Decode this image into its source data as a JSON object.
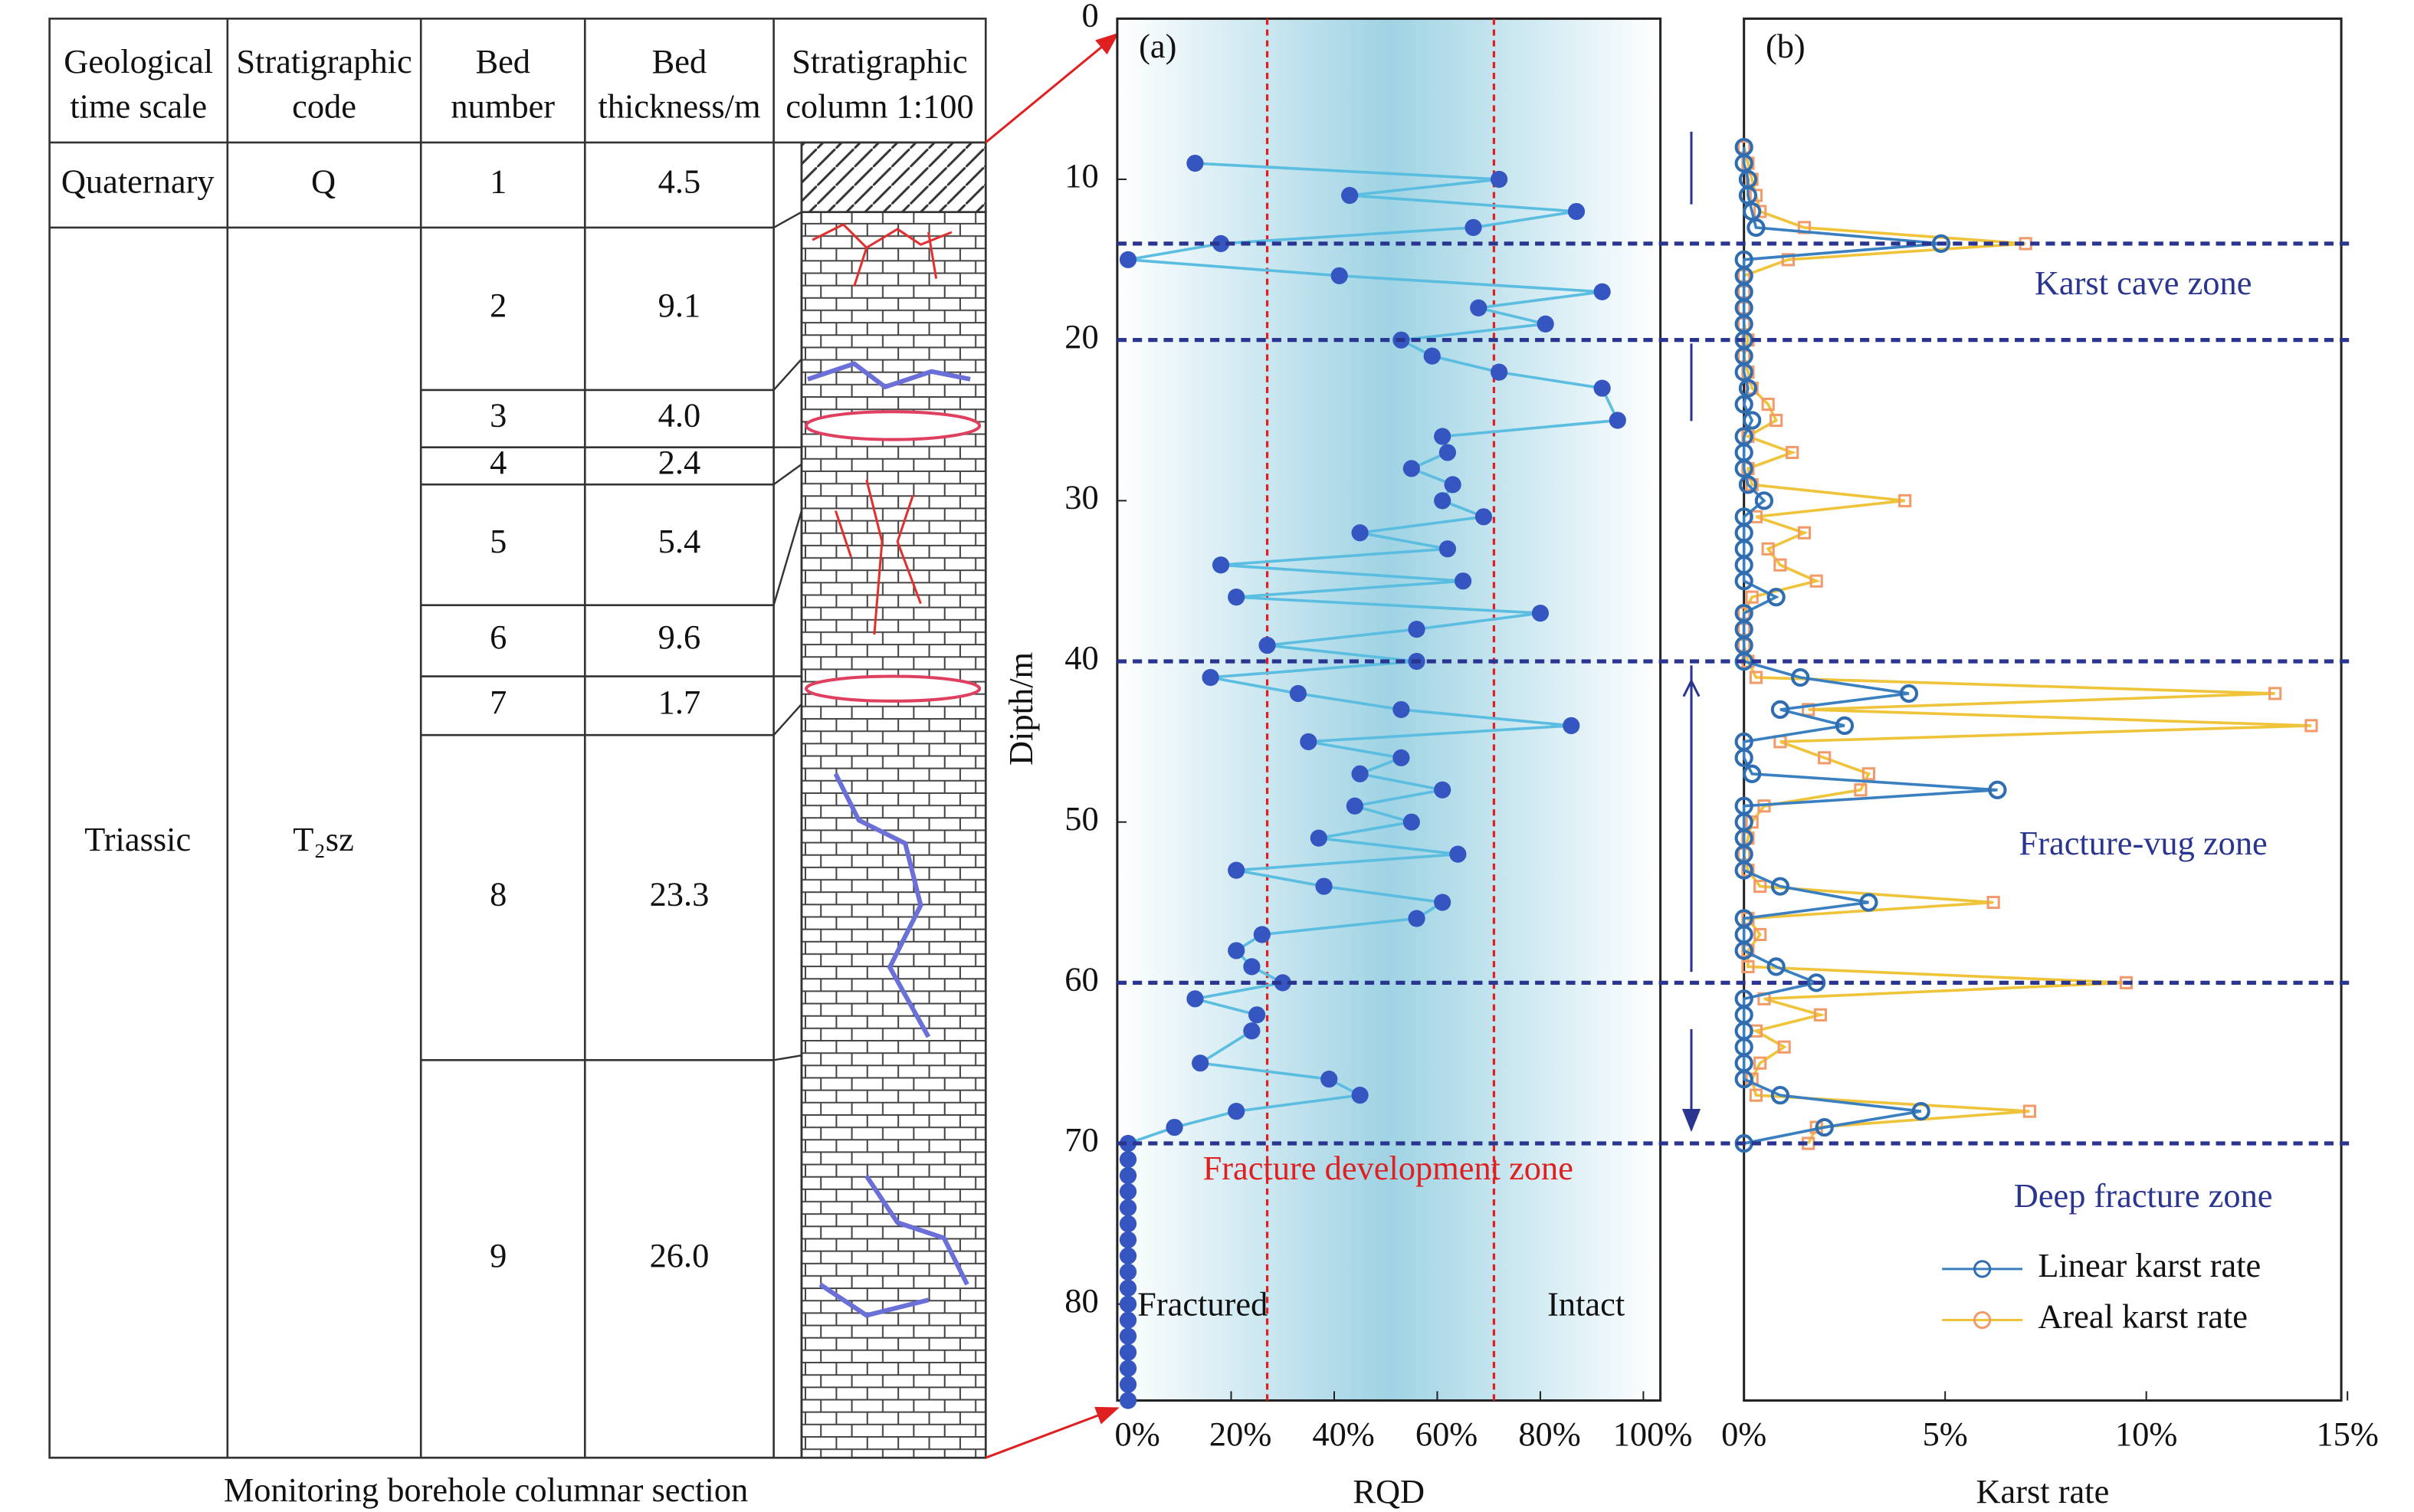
{
  "table": {
    "headers": [
      [
        "Geological",
        "time scale"
      ],
      [
        "Stratigraphic",
        "code"
      ],
      [
        "Bed",
        "number"
      ],
      [
        "Bed",
        "thickness/m"
      ],
      [
        "Stratigraphic",
        "column 1:100"
      ]
    ],
    "periods": [
      {
        "name": "Quaternary",
        "code": "Q",
        "beds": [
          {
            "number": 1,
            "thickness": "4.5"
          }
        ]
      },
      {
        "name": "Triassic",
        "code": "T₂sz",
        "beds": [
          {
            "number": 2,
            "thickness": "9.1"
          },
          {
            "number": 3,
            "thickness": "4.0"
          },
          {
            "number": 4,
            "thickness": "2.4"
          },
          {
            "number": 5,
            "thickness": "5.4"
          },
          {
            "number": 6,
            "thickness": "9.6"
          },
          {
            "number": 7,
            "thickness": "1.7"
          },
          {
            "number": 8,
            "thickness": "23.3"
          },
          {
            "number": 9,
            "thickness": "26.0"
          }
        ]
      }
    ],
    "caption": "Monitoring borehole columnar section"
  },
  "chart_data": [
    {
      "type": "scatter-line",
      "panel_label": "(a)",
      "x_label": "RQD",
      "y_label": "Dipth/m",
      "color": "#5bbde0",
      "marker_color": "#3556c0",
      "xlim": [
        0,
        100
      ],
      "xticks": [
        {
          "value": 0,
          "label": "0%"
        },
        {
          "value": 20,
          "label": "20%"
        },
        {
          "value": 40,
          "label": "40%"
        },
        {
          "value": 60,
          "label": "60%"
        },
        {
          "value": 80,
          "label": "80%"
        },
        {
          "value": 100,
          "label": "100%"
        }
      ],
      "ylim": [
        0,
        86
      ],
      "yticks": [
        0,
        10,
        20,
        30,
        40,
        50,
        60,
        70,
        80
      ],
      "thresholds": [
        27,
        71
      ],
      "annotations": [
        "Fracture development zone",
        "Fractured",
        "Intact"
      ],
      "y": [
        9,
        10,
        11,
        12,
        13,
        14,
        15,
        16,
        17,
        18,
        19,
        20,
        21,
        22,
        23,
        25,
        26,
        27,
        28,
        29,
        30,
        31,
        32,
        33,
        34,
        35,
        36,
        37,
        38,
        39,
        40,
        41,
        42,
        43,
        44,
        45,
        46,
        47,
        48,
        49,
        50,
        51,
        52,
        53,
        54,
        55,
        56,
        57,
        58,
        59,
        60,
        61,
        62,
        63,
        65,
        66,
        67,
        68,
        69,
        70,
        71,
        72,
        73,
        74,
        75,
        76,
        77,
        78,
        79,
        80,
        81,
        82,
        83,
        84,
        85,
        86
      ],
      "x": [
        13,
        72,
        43,
        87,
        67,
        18,
        0,
        41,
        92,
        68,
        81,
        53,
        59,
        72,
        92,
        95,
        61,
        62,
        55,
        63,
        61,
        69,
        45,
        62,
        18,
        65,
        21,
        80,
        56,
        27,
        56,
        16,
        33,
        53,
        86,
        35,
        53,
        45,
        61,
        44,
        55,
        37,
        64,
        21,
        38,
        61,
        56,
        26,
        21,
        24,
        30,
        13,
        25,
        24,
        14,
        39,
        45,
        21,
        9,
        0,
        0,
        0,
        0,
        0,
        0,
        0,
        0,
        0,
        0,
        0,
        0,
        0,
        0,
        0,
        0,
        0
      ]
    },
    {
      "type": "scatter-line",
      "panel_label": "(b)",
      "x_label": "Karst rate",
      "xlim": [
        0,
        15
      ],
      "xticks": [
        {
          "value": 0,
          "label": "0%"
        },
        {
          "value": 5,
          "label": "5%"
        },
        {
          "value": 10,
          "label": "10%"
        },
        {
          "value": 15,
          "label": "15%"
        }
      ],
      "ylim": [
        0,
        86
      ],
      "zone_boundaries": [
        14,
        20,
        40,
        60,
        70
      ],
      "zones": [
        "Karst cave zone",
        "Fracture-vug zone",
        "Deep fracture zone"
      ],
      "legend": "lower right",
      "y": [
        8,
        9,
        10,
        11,
        12,
        13,
        14,
        15,
        16,
        17,
        18,
        19,
        20,
        21,
        22,
        23,
        24,
        25,
        26,
        27,
        28,
        29,
        30,
        31,
        32,
        33,
        34,
        35,
        36,
        37,
        38,
        39,
        40,
        41,
        42,
        43,
        44,
        45,
        46,
        47,
        48,
        49,
        50,
        51,
        52,
        53,
        54,
        55,
        56,
        57,
        58,
        59,
        60,
        61,
        62,
        63,
        64,
        65,
        66,
        67,
        68,
        69,
        70
      ],
      "series": [
        {
          "name": "Areal karst rate",
          "color": "#f0c43a",
          "marker_color": "#f29a6a",
          "marker": "square",
          "x": [
            0,
            0.1,
            0.2,
            0.3,
            0.4,
            1.5,
            7.0,
            1.1,
            0,
            0,
            0,
            0,
            0.1,
            0,
            0.1,
            0.2,
            0.6,
            0.8,
            0.1,
            1.2,
            0.1,
            0.2,
            4.0,
            0.3,
            1.5,
            0.6,
            0.9,
            1.8,
            0.2,
            0,
            0,
            0,
            0.1,
            0.3,
            13.2,
            1.6,
            14.1,
            0.9,
            2.0,
            3.1,
            2.9,
            0.5,
            0.2,
            0.1,
            0,
            0.1,
            0.4,
            6.2,
            0.1,
            0.4,
            0.1,
            0.1,
            9.5,
            0.5,
            1.9,
            0.3,
            1.0,
            0.4,
            0.2,
            0.3,
            7.1,
            1.8,
            1.6
          ]
        },
        {
          "name": "Linear karst rate",
          "color": "#3a7fc0",
          "marker_color": "#2f6db0",
          "marker": "circle",
          "x": [
            0,
            0,
            0.1,
            0.1,
            0.2,
            0.3,
            4.9,
            0,
            0,
            0,
            0,
            0,
            0,
            0,
            0,
            0.1,
            0,
            0.2,
            0,
            0,
            0,
            0.1,
            0.5,
            0,
            0,
            0,
            0,
            0,
            0.8,
            0,
            0,
            0,
            0,
            1.4,
            4.1,
            0.9,
            2.5,
            0,
            0,
            0.2,
            6.3,
            0,
            0,
            0,
            0,
            0,
            0.9,
            3.1,
            0,
            0,
            0,
            0.8,
            1.8,
            0,
            0,
            0,
            0,
            0,
            0,
            0.9,
            4.4,
            2,
            0
          ]
        }
      ]
    }
  ]
}
